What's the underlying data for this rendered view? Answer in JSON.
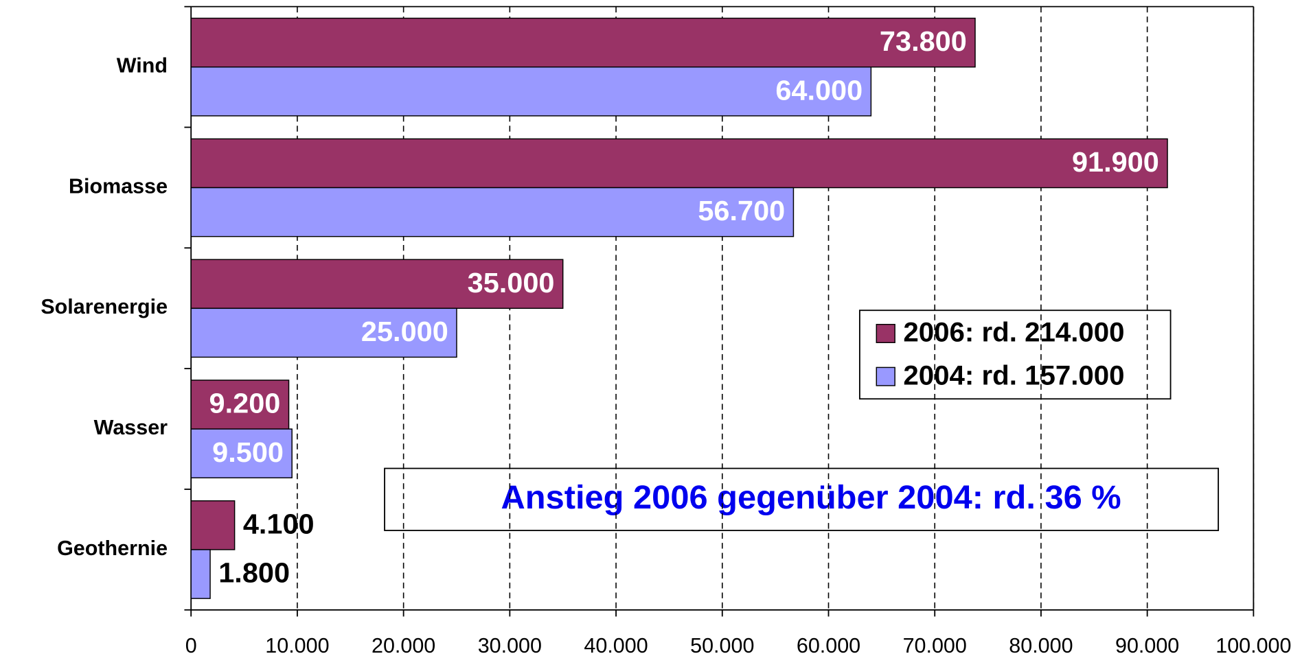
{
  "chart_data": {
    "type": "hbar",
    "categories": [
      "Wind",
      "Biomasse",
      "Solarenergie",
      "Wasser",
      "Geothernie"
    ],
    "series": [
      {
        "name": "2006: rd. 214.000",
        "color": "#993366",
        "values": [
          73800,
          91900,
          35000,
          9200,
          4100
        ],
        "value_labels": [
          "73.800",
          "91.900",
          "35.000",
          "9.200",
          "4.100"
        ]
      },
      {
        "name": "2004: rd. 157.000",
        "color": "#9999ff",
        "values": [
          64000,
          56700,
          25000,
          9500,
          1800
        ],
        "value_labels": [
          "64.000",
          "56.700",
          "25.000",
          "9.500",
          "1.800"
        ]
      }
    ],
    "xlim": [
      0,
      100000
    ],
    "xticks": [
      0,
      {
        "value": 10000,
        "label": "10.000"
      },
      {
        "value": 20000,
        "label": "20.000"
      },
      {
        "value": 30000,
        "label": "30.000"
      },
      {
        "value": 40000,
        "label": "40.000"
      },
      {
        "value": 50000,
        "label": "50.000"
      },
      {
        "value": 60000,
        "label": "60.000"
      },
      {
        "value": 70000,
        "label": "70.000"
      },
      {
        "value": 80000,
        "label": "80.000"
      },
      {
        "value": 90000,
        "label": "90.000"
      },
      {
        "value": 100000,
        "label": "100.000"
      }
    ],
    "grid": true,
    "legend": "right",
    "annotation": "Anstieg 2006 gegenüber 2004:  rd. 36 %"
  }
}
